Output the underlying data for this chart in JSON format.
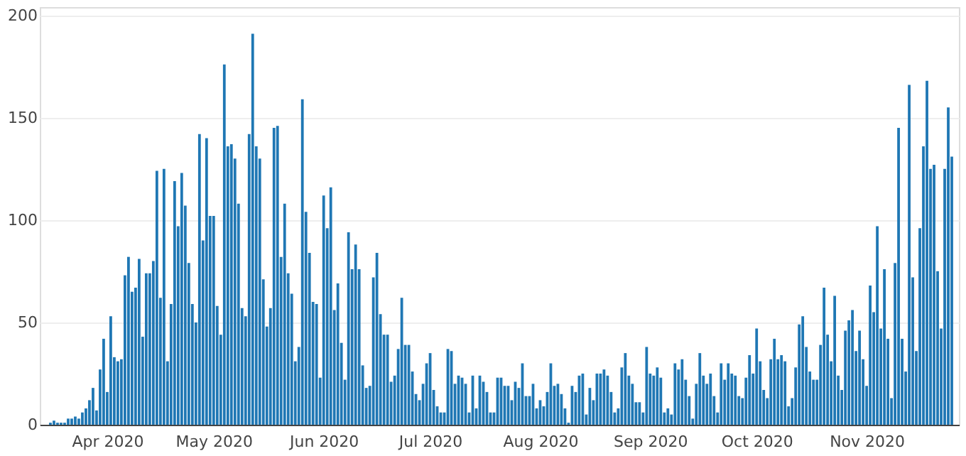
{
  "chart_data": {
    "type": "bar",
    "x": [
      "2020-03-16",
      "2020-03-17",
      "2020-03-18",
      "2020-03-19",
      "2020-03-20",
      "2020-03-21",
      "2020-03-22",
      "2020-03-23",
      "2020-03-24",
      "2020-03-25",
      "2020-03-26",
      "2020-03-27",
      "2020-03-28",
      "2020-03-29",
      "2020-03-30",
      "2020-03-31",
      "2020-04-01",
      "2020-04-02",
      "2020-04-03",
      "2020-04-04",
      "2020-04-05",
      "2020-04-06",
      "2020-04-07",
      "2020-04-08",
      "2020-04-09",
      "2020-04-10",
      "2020-04-11",
      "2020-04-12",
      "2020-04-13",
      "2020-04-14",
      "2020-04-15",
      "2020-04-16",
      "2020-04-17",
      "2020-04-18",
      "2020-04-19",
      "2020-04-20",
      "2020-04-21",
      "2020-04-22",
      "2020-04-23",
      "2020-04-24",
      "2020-04-25",
      "2020-04-26",
      "2020-04-27",
      "2020-04-28",
      "2020-04-29",
      "2020-04-30",
      "2020-05-01",
      "2020-05-02",
      "2020-05-03",
      "2020-05-04",
      "2020-05-05",
      "2020-05-06",
      "2020-05-07",
      "2020-05-08",
      "2020-05-09",
      "2020-05-10",
      "2020-05-11",
      "2020-05-12",
      "2020-05-13",
      "2020-05-14",
      "2020-05-15",
      "2020-05-16",
      "2020-05-17",
      "2020-05-18",
      "2020-05-19",
      "2020-05-20",
      "2020-05-21",
      "2020-05-22",
      "2020-05-23",
      "2020-05-24",
      "2020-05-25",
      "2020-05-26",
      "2020-05-27",
      "2020-05-28",
      "2020-05-29",
      "2020-05-30",
      "2020-05-31",
      "2020-06-01",
      "2020-06-02",
      "2020-06-03",
      "2020-06-04",
      "2020-06-05",
      "2020-06-06",
      "2020-06-07",
      "2020-06-08",
      "2020-06-09",
      "2020-06-10",
      "2020-06-11",
      "2020-06-12",
      "2020-06-13",
      "2020-06-14",
      "2020-06-15",
      "2020-06-16",
      "2020-06-17",
      "2020-06-18",
      "2020-06-19",
      "2020-06-20",
      "2020-06-21",
      "2020-06-22",
      "2020-06-23",
      "2020-06-24",
      "2020-06-25",
      "2020-06-26",
      "2020-06-27",
      "2020-06-28",
      "2020-06-29",
      "2020-06-30",
      "2020-07-01",
      "2020-07-02",
      "2020-07-03",
      "2020-07-04",
      "2020-07-05",
      "2020-07-06",
      "2020-07-07",
      "2020-07-08",
      "2020-07-09",
      "2020-07-10",
      "2020-07-11",
      "2020-07-12",
      "2020-07-13",
      "2020-07-14",
      "2020-07-15",
      "2020-07-16",
      "2020-07-17",
      "2020-07-18",
      "2020-07-19",
      "2020-07-20",
      "2020-07-21",
      "2020-07-22",
      "2020-07-23",
      "2020-07-24",
      "2020-07-25",
      "2020-07-26",
      "2020-07-27",
      "2020-07-28",
      "2020-07-29",
      "2020-07-30",
      "2020-07-31",
      "2020-08-01",
      "2020-08-02",
      "2020-08-03",
      "2020-08-04",
      "2020-08-05",
      "2020-08-06",
      "2020-08-07",
      "2020-08-08",
      "2020-08-09",
      "2020-08-10",
      "2020-08-11",
      "2020-08-12",
      "2020-08-13",
      "2020-08-14",
      "2020-08-15",
      "2020-08-16",
      "2020-08-17",
      "2020-08-18",
      "2020-08-19",
      "2020-08-20",
      "2020-08-21",
      "2020-08-22",
      "2020-08-23",
      "2020-08-24",
      "2020-08-25",
      "2020-08-26",
      "2020-08-27",
      "2020-08-28",
      "2020-08-29",
      "2020-08-30",
      "2020-08-31",
      "2020-09-01",
      "2020-09-02",
      "2020-09-03",
      "2020-09-04",
      "2020-09-05",
      "2020-09-06",
      "2020-09-07",
      "2020-09-08",
      "2020-09-09",
      "2020-09-10",
      "2020-09-11",
      "2020-09-12",
      "2020-09-13",
      "2020-09-14",
      "2020-09-15",
      "2020-09-16",
      "2020-09-17",
      "2020-09-18",
      "2020-09-19",
      "2020-09-20",
      "2020-09-21",
      "2020-09-22",
      "2020-09-23",
      "2020-09-24",
      "2020-09-25",
      "2020-09-26",
      "2020-09-27",
      "2020-09-28",
      "2020-09-29",
      "2020-09-30",
      "2020-10-01",
      "2020-10-02",
      "2020-10-03",
      "2020-10-04",
      "2020-10-05",
      "2020-10-06",
      "2020-10-07",
      "2020-10-08",
      "2020-10-09",
      "2020-10-10",
      "2020-10-11",
      "2020-10-12",
      "2020-10-13",
      "2020-10-14",
      "2020-10-15",
      "2020-10-16",
      "2020-10-17",
      "2020-10-18",
      "2020-10-19",
      "2020-10-20",
      "2020-10-21",
      "2020-10-22",
      "2020-10-23",
      "2020-10-24",
      "2020-10-25",
      "2020-10-26",
      "2020-10-27",
      "2020-10-28",
      "2020-10-29",
      "2020-10-30",
      "2020-10-31",
      "2020-11-01",
      "2020-11-02",
      "2020-11-03",
      "2020-11-04",
      "2020-11-05",
      "2020-11-06",
      "2020-11-07",
      "2020-11-08",
      "2020-11-09",
      "2020-11-10",
      "2020-11-11",
      "2020-11-12",
      "2020-11-13",
      "2020-11-14",
      "2020-11-15",
      "2020-11-16",
      "2020-11-17",
      "2020-11-18",
      "2020-11-19",
      "2020-11-20",
      "2020-11-21",
      "2020-11-22",
      "2020-11-23",
      "2020-11-24",
      "2020-11-25"
    ],
    "values": [
      1,
      2,
      1,
      1,
      1,
      3,
      3,
      4,
      3,
      6,
      8,
      12,
      18,
      7,
      27,
      42,
      16,
      53,
      33,
      31,
      32,
      73,
      82,
      65,
      67,
      81,
      43,
      74,
      74,
      80,
      124,
      62,
      125,
      31,
      59,
      119,
      97,
      123,
      107,
      79,
      59,
      50,
      142,
      90,
      140,
      102,
      102,
      58,
      44,
      176,
      136,
      137,
      130,
      108,
      57,
      53,
      142,
      191,
      136,
      130,
      71,
      48,
      57,
      145,
      146,
      82,
      108,
      74,
      64,
      31,
      38,
      159,
      104,
      84,
      60,
      59,
      23,
      112,
      96,
      116,
      56,
      69,
      40,
      22,
      94,
      76,
      88,
      76,
      29,
      18,
      19,
      72,
      84,
      54,
      44,
      44,
      21,
      24,
      37,
      62,
      39,
      39,
      26,
      15,
      12,
      20,
      30,
      35,
      17,
      9,
      6,
      6,
      37,
      36,
      20,
      24,
      23,
      20,
      6,
      24,
      8,
      24,
      21,
      16,
      6,
      6,
      23,
      23,
      19,
      19,
      12,
      21,
      18,
      30,
      14,
      14,
      20,
      8,
      12,
      9,
      16,
      30,
      19,
      20,
      15,
      8,
      1,
      19,
      16,
      24,
      25,
      5,
      18,
      12,
      25,
      25,
      27,
      24,
      16,
      6,
      8,
      28,
      35,
      24,
      20,
      11,
      11,
      6,
      38,
      25,
      24,
      28,
      23,
      6,
      8,
      5,
      30,
      27,
      32,
      22,
      14,
      3,
      20,
      35,
      24,
      20,
      25,
      14,
      6,
      30,
      22,
      30,
      25,
      24,
      14,
      13,
      23,
      34,
      25,
      47,
      31,
      17,
      13,
      32,
      42,
      32,
      34,
      31,
      9,
      13,
      28,
      49,
      53,
      38,
      26,
      22,
      22,
      39,
      67,
      44,
      31,
      63,
      24,
      17,
      46,
      51,
      56,
      36,
      46,
      32,
      19,
      68,
      55,
      97,
      47,
      76,
      42,
      13,
      79,
      145,
      42,
      26,
      166,
      72,
      36,
      96,
      136,
      168,
      125,
      127,
      75,
      47,
      125,
      155,
      131
    ],
    "color": "#1f77b4",
    "xlim": [
      "2020-03-13",
      "2020-11-27"
    ],
    "xticks": [
      {
        "value": "2020-04-01",
        "label": "Apr 2020"
      },
      {
        "value": "2020-05-01",
        "label": "May 2020"
      },
      {
        "value": "2020-06-01",
        "label": "Jun 2020"
      },
      {
        "value": "2020-07-01",
        "label": "Jul 2020"
      },
      {
        "value": "2020-08-01",
        "label": "Aug 2020"
      },
      {
        "value": "2020-09-01",
        "label": "Sep 2020"
      },
      {
        "value": "2020-10-01",
        "label": "Oct 2020"
      },
      {
        "value": "2020-11-01",
        "label": "Nov 2020"
      }
    ],
    "ylim": [
      0,
      204
    ],
    "yticks": [
      0,
      50,
      100,
      150,
      200
    ],
    "grid": "y"
  }
}
